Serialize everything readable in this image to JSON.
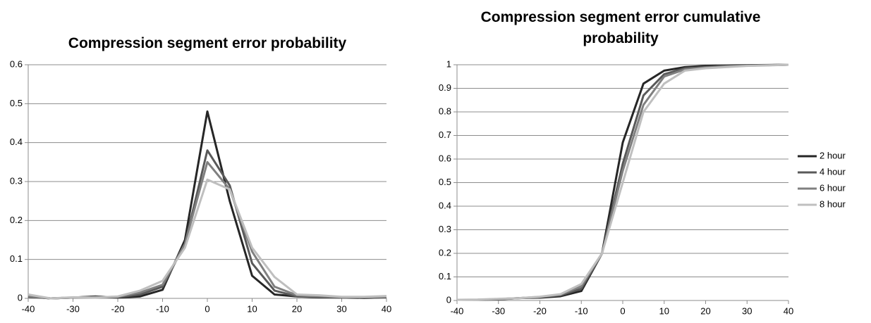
{
  "chart_data": [
    {
      "type": "line",
      "title": "Compression segment error probability",
      "x": [
        -40,
        -35,
        -30,
        -25,
        -20,
        -15,
        -10,
        -5,
        0,
        5,
        10,
        15,
        20,
        25,
        30,
        35,
        40
      ],
      "series": [
        {
          "color": "#262626",
          "values": [
            0.005,
            0,
            0.002,
            0.005,
            0.002,
            0.005,
            0.022,
            0.15,
            0.48,
            0.25,
            0.058,
            0.01,
            0.005,
            0.003,
            0.002,
            0.001,
            0.003
          ]
        },
        {
          "color": "#595959",
          "values": [
            0.004,
            0,
            0.002,
            0.004,
            0.003,
            0.01,
            0.03,
            0.14,
            0.38,
            0.29,
            0.09,
            0.02,
            0.005,
            0.004,
            0.002,
            0.002,
            0.003
          ]
        },
        {
          "color": "#808080",
          "values": [
            0.006,
            0,
            0.002,
            0.003,
            0.004,
            0.015,
            0.035,
            0.14,
            0.35,
            0.28,
            0.12,
            0.03,
            0.008,
            0.005,
            0.003,
            0.002,
            0.004
          ]
        },
        {
          "color": "#bfbfbf",
          "values": [
            0.01,
            0,
            0.003,
            0.002,
            0.005,
            0.02,
            0.045,
            0.13,
            0.305,
            0.28,
            0.13,
            0.055,
            0.01,
            0.008,
            0.004,
            0.004,
            0.006
          ]
        }
      ],
      "xlim": [
        -40,
        40
      ],
      "xticks": [
        -40,
        -30,
        -20,
        -10,
        0,
        10,
        20,
        30,
        40
      ],
      "ylim": [
        0,
        0.6
      ],
      "yticks": [
        0,
        0.1,
        0.2,
        0.3,
        0.4,
        0.5,
        0.6
      ],
      "grid": true
    },
    {
      "type": "line",
      "title": "Compression segment error cumulative probability",
      "x": [
        -40,
        -35,
        -30,
        -25,
        -20,
        -15,
        -10,
        -5,
        0,
        5,
        10,
        15,
        20,
        25,
        30,
        35,
        40
      ],
      "series": [
        {
          "name": "2 hour",
          "color": "#262626",
          "values": [
            0.003,
            0.003,
            0.005,
            0.01,
            0.012,
            0.018,
            0.04,
            0.2,
            0.67,
            0.92,
            0.975,
            0.99,
            0.995,
            0.997,
            0.998,
            0.999,
            1
          ]
        },
        {
          "name": "4 hour",
          "color": "#595959",
          "values": [
            0.003,
            0.003,
            0.006,
            0.01,
            0.014,
            0.022,
            0.05,
            0.2,
            0.58,
            0.87,
            0.96,
            0.985,
            0.99,
            0.995,
            0.997,
            0.998,
            1
          ]
        },
        {
          "name": "6 hour",
          "color": "#808080",
          "values": [
            0.003,
            0.003,
            0.006,
            0.01,
            0.015,
            0.025,
            0.06,
            0.2,
            0.55,
            0.83,
            0.95,
            0.98,
            0.988,
            0.993,
            0.996,
            0.998,
            1
          ]
        },
        {
          "name": "8 hour",
          "color": "#bfbfbf",
          "values": [
            0.003,
            0.004,
            0.007,
            0.01,
            0.016,
            0.027,
            0.07,
            0.2,
            0.5,
            0.8,
            0.92,
            0.975,
            0.985,
            0.99,
            0.995,
            0.997,
            1
          ]
        }
      ],
      "xlim": [
        -40,
        40
      ],
      "xticks": [
        -40,
        -30,
        -20,
        -10,
        0,
        10,
        20,
        30,
        40
      ],
      "ylim": [
        0,
        1
      ],
      "yticks": [
        0,
        0.1,
        0.2,
        0.3,
        0.4,
        0.5,
        0.6,
        0.7,
        0.8,
        0.9,
        1
      ],
      "grid": true,
      "legend": "right"
    }
  ]
}
